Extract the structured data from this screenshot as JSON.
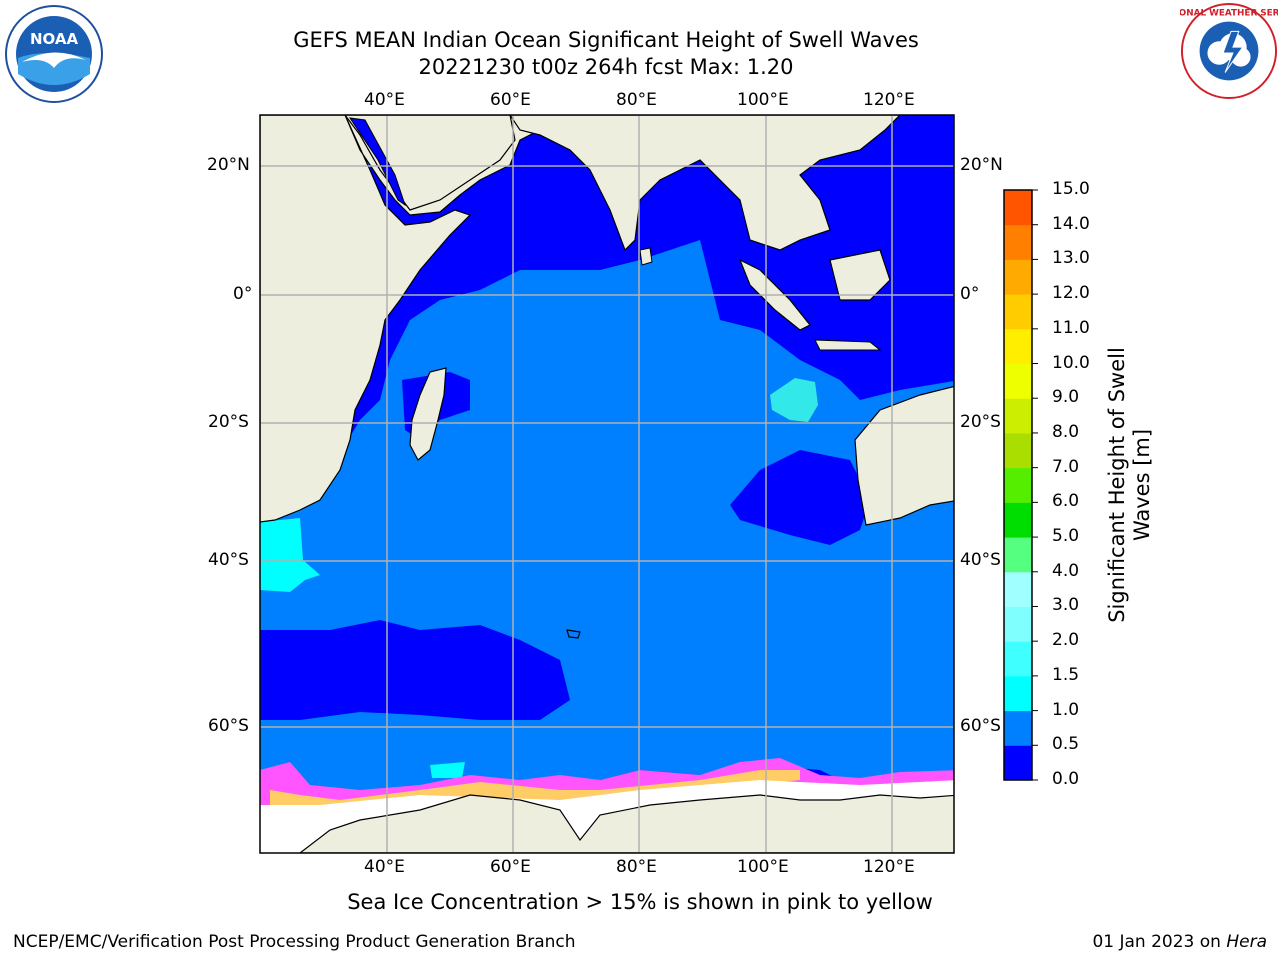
{
  "header": {
    "title_line1": "GEFS MEAN Indian Ocean Significant Height of Swell Waves",
    "title_line2": "20221230 t00z 264h fcst   Max: 1.20"
  },
  "map": {
    "lon_labels": [
      "40°E",
      "60°E",
      "80°E",
      "100°E",
      "120°E"
    ],
    "lat_labels": [
      "20°N",
      "0°",
      "20°S",
      "40°S",
      "60°S"
    ],
    "colors": {
      "land": "#eeeedf",
      "ocean_low": "#0000ff",
      "ocean_mid": "#0080ff",
      "ocean_high": "#00ffff",
      "ice": "#ff55ff",
      "gridlines": "#b0b0b0"
    }
  },
  "colorbar": {
    "title_line1": "Significant Height of Swell",
    "title_line2": "Waves [m]",
    "ticks": [
      "0.0",
      "0.5",
      "1.0",
      "1.5",
      "2.0",
      "3.0",
      "4.0",
      "5.0",
      "6.0",
      "7.0",
      "8.0",
      "9.0",
      "10.0",
      "11.0",
      "12.0",
      "13.0",
      "14.0",
      "15.0"
    ],
    "colors": [
      "#0000ff",
      "#0080ff",
      "#00ffff",
      "#40ffff",
      "#80ffff",
      "#a0ffff",
      "#55ff80",
      "#00dd00",
      "#55ee00",
      "#aadd00",
      "#ccee00",
      "#eeff00",
      "#ffee00",
      "#ffcc00",
      "#ffaa00",
      "#ff8000",
      "#ff5500",
      "#ff2000",
      "#ff0000"
    ]
  },
  "caption": "Sea Ice Concentration > 15% is shown in pink to yellow",
  "footer": {
    "left": "NCEP/EMC/Verification Post Processing Product Generation Branch",
    "right_date": "01 Jan 2023 on ",
    "right_host": "Hera"
  },
  "logos": {
    "noaa_text": "NOAA",
    "nws_text": "NATIONAL WEATHER SERVICE"
  }
}
